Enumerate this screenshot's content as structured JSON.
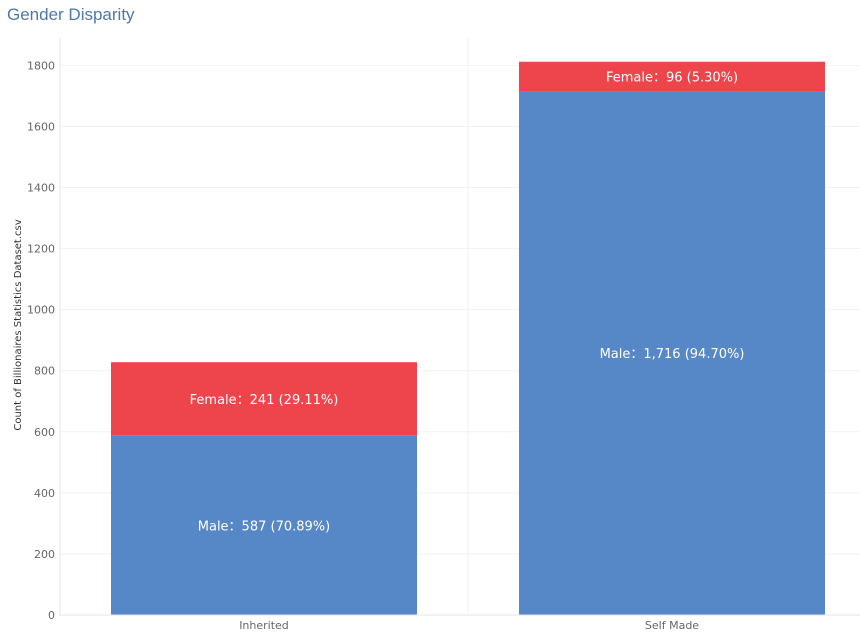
{
  "title": "Gender Disparity",
  "colors": {
    "male": "#5687c6",
    "female": "#ee444b",
    "title": "#4e79a7"
  },
  "chart_data": {
    "type": "bar",
    "stacked": true,
    "categories": [
      "Inherited",
      "Self Made"
    ],
    "series": [
      {
        "name": "Male",
        "values": [
          587,
          1716
        ],
        "labels": [
          "Male：587 (70.89%)",
          "Male：1,716 (94.70%)"
        ]
      },
      {
        "name": "Female",
        "values": [
          241,
          96
        ],
        "labels": [
          "Female：241 (29.11%)",
          "Female：96 (5.30%)"
        ]
      }
    ],
    "ylabel": "Count of Billionaires Statistics Dataset.csv",
    "xlabel": "",
    "ylim": [
      0,
      1850
    ],
    "yticks": [
      0,
      200,
      400,
      600,
      800,
      1000,
      1200,
      1400,
      1600,
      1800
    ],
    "grid": true
  }
}
